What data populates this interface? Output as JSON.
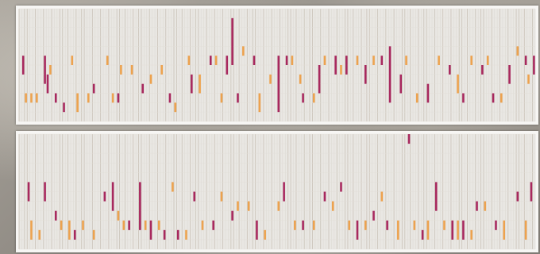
{
  "colors": {
    "crimson": "#a8285e",
    "orange": "#eda24e",
    "grid_dark": "#cdc6bc",
    "grid_light": "#e9e7e3",
    "panel_bg": "#f7f6f4",
    "backdrop": "#8f8a83"
  },
  "chart_data": [
    {
      "type": "heatmap",
      "title": "",
      "xlabel": "",
      "ylabel": "",
      "grid": true,
      "legend": "none",
      "columns": 190,
      "rows": 12,
      "series": [
        {
          "color": "crimson",
          "segments": [
            {
              "col": 1,
              "row0": 5,
              "row1": 7
            },
            {
              "col": 9,
              "row0": 5,
              "row1": 8
            },
            {
              "col": 10,
              "row0": 7,
              "row1": 9
            },
            {
              "col": 13,
              "row0": 9,
              "row1": 10
            },
            {
              "col": 16,
              "row0": 10,
              "row1": 11
            },
            {
              "col": 27,
              "row0": 8,
              "row1": 9
            },
            {
              "col": 36,
              "row0": 9,
              "row1": 10
            },
            {
              "col": 45,
              "row0": 8,
              "row1": 9
            },
            {
              "col": 55,
              "row0": 9,
              "row1": 10
            },
            {
              "col": 63,
              "row0": 7,
              "row1": 9
            },
            {
              "col": 70,
              "row0": 5,
              "row1": 6
            },
            {
              "col": 76,
              "row0": 5,
              "row1": 7
            },
            {
              "col": 78,
              "row0": 1,
              "row1": 6
            },
            {
              "col": 80,
              "row0": 9,
              "row1": 10
            },
            {
              "col": 86,
              "row0": 5,
              "row1": 6
            },
            {
              "col": 95,
              "row0": 5,
              "row1": 11
            },
            {
              "col": 98,
              "row0": 5,
              "row1": 6
            },
            {
              "col": 104,
              "row0": 9,
              "row1": 10
            },
            {
              "col": 110,
              "row0": 6,
              "row1": 9
            },
            {
              "col": 116,
              "row0": 5,
              "row1": 7
            },
            {
              "col": 120,
              "row0": 5,
              "row1": 7
            },
            {
              "col": 127,
              "row0": 6,
              "row1": 8
            },
            {
              "col": 133,
              "row0": 5,
              "row1": 6
            },
            {
              "col": 136,
              "row0": 4,
              "row1": 10
            },
            {
              "col": 140,
              "row0": 7,
              "row1": 9
            },
            {
              "col": 150,
              "row0": 8,
              "row1": 10
            },
            {
              "col": 158,
              "row0": 6,
              "row1": 7
            },
            {
              "col": 163,
              "row0": 9,
              "row1": 10
            },
            {
              "col": 170,
              "row0": 6,
              "row1": 7
            },
            {
              "col": 174,
              "row0": 9,
              "row1": 10
            },
            {
              "col": 180,
              "row0": 6,
              "row1": 8
            },
            {
              "col": 186,
              "row0": 5,
              "row1": 6
            },
            {
              "col": 189,
              "row0": 5,
              "row1": 7
            }
          ]
        },
        {
          "color": "orange",
          "segments": [
            {
              "col": 2,
              "row0": 9,
              "row1": 10
            },
            {
              "col": 4,
              "row0": 9,
              "row1": 10
            },
            {
              "col": 6,
              "row0": 9,
              "row1": 10
            },
            {
              "col": 11,
              "row0": 6,
              "row1": 7
            },
            {
              "col": 19,
              "row0": 5,
              "row1": 6
            },
            {
              "col": 21,
              "row0": 9,
              "row1": 11
            },
            {
              "col": 25,
              "row0": 9,
              "row1": 10
            },
            {
              "col": 32,
              "row0": 5,
              "row1": 6
            },
            {
              "col": 34,
              "row0": 9,
              "row1": 10
            },
            {
              "col": 37,
              "row0": 6,
              "row1": 7
            },
            {
              "col": 41,
              "row0": 6,
              "row1": 7
            },
            {
              "col": 48,
              "row0": 7,
              "row1": 8
            },
            {
              "col": 52,
              "row0": 6,
              "row1": 7
            },
            {
              "col": 57,
              "row0": 10,
              "row1": 11
            },
            {
              "col": 62,
              "row0": 5,
              "row1": 6
            },
            {
              "col": 66,
              "row0": 7,
              "row1": 9
            },
            {
              "col": 72,
              "row0": 5,
              "row1": 6
            },
            {
              "col": 74,
              "row0": 9,
              "row1": 10
            },
            {
              "col": 82,
              "row0": 4,
              "row1": 5
            },
            {
              "col": 88,
              "row0": 9,
              "row1": 11
            },
            {
              "col": 92,
              "row0": 7,
              "row1": 8
            },
            {
              "col": 100,
              "row0": 5,
              "row1": 6
            },
            {
              "col": 103,
              "row0": 7,
              "row1": 8
            },
            {
              "col": 108,
              "row0": 9,
              "row1": 10
            },
            {
              "col": 112,
              "row0": 5,
              "row1": 6
            },
            {
              "col": 118,
              "row0": 6,
              "row1": 7
            },
            {
              "col": 124,
              "row0": 5,
              "row1": 6
            },
            {
              "col": 130,
              "row0": 5,
              "row1": 6
            },
            {
              "col": 142,
              "row0": 5,
              "row1": 6
            },
            {
              "col": 146,
              "row0": 9,
              "row1": 10
            },
            {
              "col": 154,
              "row0": 5,
              "row1": 6
            },
            {
              "col": 161,
              "row0": 7,
              "row1": 9
            },
            {
              "col": 166,
              "row0": 5,
              "row1": 6
            },
            {
              "col": 172,
              "row0": 5,
              "row1": 6
            },
            {
              "col": 177,
              "row0": 9,
              "row1": 10
            },
            {
              "col": 183,
              "row0": 4,
              "row1": 5
            },
            {
              "col": 187,
              "row0": 7,
              "row1": 8
            }
          ]
        }
      ]
    },
    {
      "type": "heatmap",
      "title": "",
      "xlabel": "",
      "ylabel": "",
      "grid": true,
      "legend": "none",
      "columns": 190,
      "rows": 12,
      "series": [
        {
          "color": "crimson",
          "segments": [
            {
              "col": 3,
              "row0": 5,
              "row1": 7
            },
            {
              "col": 9,
              "row0": 5,
              "row1": 7
            },
            {
              "col": 13,
              "row0": 8,
              "row1": 9
            },
            {
              "col": 20,
              "row0": 10,
              "row1": 11
            },
            {
              "col": 31,
              "row0": 6,
              "row1": 7
            },
            {
              "col": 34,
              "row0": 5,
              "row1": 8
            },
            {
              "col": 40,
              "row0": 9,
              "row1": 10
            },
            {
              "col": 44,
              "row0": 5,
              "row1": 10
            },
            {
              "col": 48,
              "row0": 9,
              "row1": 11
            },
            {
              "col": 53,
              "row0": 10,
              "row1": 11
            },
            {
              "col": 58,
              "row0": 10,
              "row1": 11
            },
            {
              "col": 64,
              "row0": 6,
              "row1": 7
            },
            {
              "col": 71,
              "row0": 9,
              "row1": 10
            },
            {
              "col": 78,
              "row0": 8,
              "row1": 9
            },
            {
              "col": 87,
              "row0": 9,
              "row1": 11
            },
            {
              "col": 97,
              "row0": 5,
              "row1": 7
            },
            {
              "col": 104,
              "row0": 9,
              "row1": 10
            },
            {
              "col": 112,
              "row0": 6,
              "row1": 7
            },
            {
              "col": 118,
              "row0": 5,
              "row1": 6
            },
            {
              "col": 124,
              "row0": 9,
              "row1": 11
            },
            {
              "col": 130,
              "row0": 8,
              "row1": 9
            },
            {
              "col": 135,
              "row0": 9,
              "row1": 10
            },
            {
              "col": 143,
              "row0": 0,
              "row1": 1
            },
            {
              "col": 148,
              "row0": 10,
              "row1": 11
            },
            {
              "col": 153,
              "row0": 5,
              "row1": 8
            },
            {
              "col": 159,
              "row0": 9,
              "row1": 11
            },
            {
              "col": 163,
              "row0": 9,
              "row1": 11
            },
            {
              "col": 168,
              "row0": 7,
              "row1": 8
            },
            {
              "col": 175,
              "row0": 9,
              "row1": 10
            },
            {
              "col": 183,
              "row0": 6,
              "row1": 7
            },
            {
              "col": 188,
              "row0": 5,
              "row1": 7
            }
          ]
        },
        {
          "color": "orange",
          "segments": [
            {
              "col": 4,
              "row0": 9,
              "row1": 11
            },
            {
              "col": 7,
              "row0": 10,
              "row1": 11
            },
            {
              "col": 15,
              "row0": 9,
              "row1": 10
            },
            {
              "col": 18,
              "row0": 9,
              "row1": 11
            },
            {
              "col": 23,
              "row0": 9,
              "row1": 10
            },
            {
              "col": 27,
              "row0": 10,
              "row1": 11
            },
            {
              "col": 36,
              "row0": 8,
              "row1": 9
            },
            {
              "col": 38,
              "row0": 9,
              "row1": 10
            },
            {
              "col": 46,
              "row0": 9,
              "row1": 10
            },
            {
              "col": 51,
              "row0": 9,
              "row1": 10
            },
            {
              "col": 56,
              "row0": 5,
              "row1": 6
            },
            {
              "col": 61,
              "row0": 10,
              "row1": 11
            },
            {
              "col": 67,
              "row0": 9,
              "row1": 10
            },
            {
              "col": 74,
              "row0": 6,
              "row1": 7
            },
            {
              "col": 80,
              "row0": 7,
              "row1": 8
            },
            {
              "col": 84,
              "row0": 7,
              "row1": 8
            },
            {
              "col": 90,
              "row0": 10,
              "row1": 11
            },
            {
              "col": 95,
              "row0": 7,
              "row1": 8
            },
            {
              "col": 101,
              "row0": 9,
              "row1": 10
            },
            {
              "col": 108,
              "row0": 9,
              "row1": 10
            },
            {
              "col": 115,
              "row0": 7,
              "row1": 8
            },
            {
              "col": 121,
              "row0": 9,
              "row1": 10
            },
            {
              "col": 127,
              "row0": 9,
              "row1": 10
            },
            {
              "col": 133,
              "row0": 6,
              "row1": 7
            },
            {
              "col": 139,
              "row0": 9,
              "row1": 11
            },
            {
              "col": 145,
              "row0": 9,
              "row1": 10
            },
            {
              "col": 150,
              "row0": 9,
              "row1": 11
            },
            {
              "col": 156,
              "row0": 9,
              "row1": 10
            },
            {
              "col": 161,
              "row0": 9,
              "row1": 11
            },
            {
              "col": 166,
              "row0": 10,
              "row1": 11
            },
            {
              "col": 171,
              "row0": 7,
              "row1": 8
            },
            {
              "col": 178,
              "row0": 9,
              "row1": 11
            },
            {
              "col": 186,
              "row0": 9,
              "row1": 11
            }
          ]
        }
      ]
    }
  ]
}
